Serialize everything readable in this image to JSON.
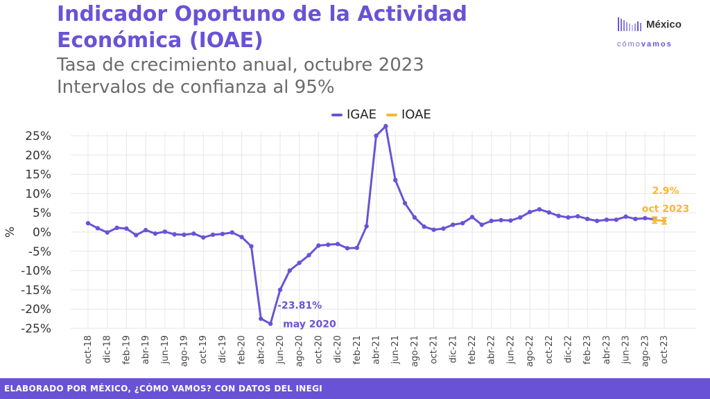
{
  "header": {
    "title": "Indicador Oportuno de la Actividad Económica (IOAE)",
    "subtitle_line1": "Tasa de crecimiento anual, octubre 2023",
    "subtitle_line2": "Intervalos de confianza al 95%"
  },
  "logo": {
    "word1": "México",
    "word2a": "cómo",
    "word2b": "vamos"
  },
  "footer": {
    "text": "ELABORADO POR MÉXICO, ¿CÓMO VAMOS? CON DATOS DEL INEGI"
  },
  "colors": {
    "igae": "#6a52d6",
    "ioae": "#f7b731",
    "grid": "#e6e6e6"
  },
  "chart_data": {
    "type": "line",
    "ylabel": "%",
    "ylim": [
      -25,
      25
    ],
    "yticks": [
      "25%",
      "20%",
      "15%",
      "10%",
      "5%",
      "0%",
      "-5%",
      "-10%",
      "-15%",
      "-20%",
      "-25%"
    ],
    "ytick_values": [
      25,
      20,
      15,
      10,
      5,
      0,
      -5,
      -10,
      -15,
      -20,
      -25
    ],
    "grid": true,
    "legend_position": "top-center",
    "x": [
      "oct-18",
      "nov-18",
      "dic-18",
      "ene-19",
      "feb-19",
      "mar-19",
      "abr-19",
      "may-19",
      "jun-19",
      "jul-19",
      "ago-19",
      "sep-19",
      "oct-19",
      "nov-19",
      "dic-19",
      "ene-20",
      "feb-20",
      "mar-20",
      "abr-20",
      "may-20",
      "jun-20",
      "jul-20",
      "ago-20",
      "sep-20",
      "oct-20",
      "nov-20",
      "dic-20",
      "ene-21",
      "feb-21",
      "mar-21",
      "abr-21",
      "may-21",
      "jun-21",
      "jul-21",
      "ago-21",
      "sep-21",
      "oct-21",
      "nov-21",
      "dic-21",
      "ene-22",
      "feb-22",
      "mar-22",
      "abr-22",
      "may-22",
      "jun-22",
      "jul-22",
      "ago-22",
      "sep-22",
      "oct-22",
      "nov-22",
      "dic-22",
      "ene-23",
      "feb-23",
      "mar-23",
      "abr-23",
      "may-23",
      "jun-23",
      "jul-23",
      "ago-23",
      "sep-23",
      "oct-23"
    ],
    "xtick_labels": [
      "oct-18",
      "dic-18",
      "feb-19",
      "abr-19",
      "jun-19",
      "ago-19",
      "oct-19",
      "dic-19",
      "feb-20",
      "abr-20",
      "jun-20",
      "ago-20",
      "oct-20",
      "dic-20",
      "feb-21",
      "abr-21",
      "jun-21",
      "ago-21",
      "oct-21",
      "dic-21",
      "feb-22",
      "abr-22",
      "jun-22",
      "ago-22",
      "oct-22",
      "dic-22",
      "feb-23",
      "abr-23",
      "jun-23",
      "ago-23",
      "oct-23"
    ],
    "series": [
      {
        "name": "IGAE",
        "values": [
          2.3,
          1.0,
          -0.1,
          1.1,
          0.9,
          -0.8,
          0.5,
          -0.4,
          0.1,
          -0.6,
          -0.7,
          -0.4,
          -1.4,
          -0.7,
          -0.5,
          -0.1,
          -1.3,
          -3.7,
          -22.5,
          -23.81,
          -15.0,
          -10.0,
          -8.0,
          -6.0,
          -3.5,
          -3.3,
          -3.1,
          -4.2,
          -4.1,
          1.5,
          25.0,
          27.5,
          13.5,
          7.5,
          3.8,
          1.4,
          0.6,
          0.9,
          1.9,
          2.3,
          3.9,
          1.9,
          2.9,
          3.1,
          3.0,
          3.8,
          5.2,
          5.9,
          5.1,
          4.2,
          3.8,
          4.1,
          3.4,
          2.9,
          3.2,
          3.2,
          4.0,
          3.4,
          3.6,
          3.3,
          null
        ]
      },
      {
        "name": "IOAE",
        "values": [
          null,
          null,
          null,
          null,
          null,
          null,
          null,
          null,
          null,
          null,
          null,
          null,
          null,
          null,
          null,
          null,
          null,
          null,
          null,
          null,
          null,
          null,
          null,
          null,
          null,
          null,
          null,
          null,
          null,
          null,
          null,
          null,
          null,
          null,
          null,
          null,
          null,
          null,
          null,
          null,
          null,
          null,
          null,
          null,
          null,
          null,
          null,
          null,
          null,
          null,
          null,
          null,
          null,
          null,
          null,
          null,
          null,
          null,
          null,
          3.1,
          2.9
        ],
        "ci_low": [
          null,
          null,
          null,
          null,
          null,
          null,
          null,
          null,
          null,
          null,
          null,
          null,
          null,
          null,
          null,
          null,
          null,
          null,
          null,
          null,
          null,
          null,
          null,
          null,
          null,
          null,
          null,
          null,
          null,
          null,
          null,
          null,
          null,
          null,
          null,
          null,
          null,
          null,
          null,
          null,
          null,
          null,
          null,
          null,
          null,
          null,
          null,
          null,
          null,
          null,
          null,
          null,
          null,
          null,
          null,
          null,
          null,
          null,
          null,
          2.3,
          2.1
        ],
        "ci_high": [
          null,
          null,
          null,
          null,
          null,
          null,
          null,
          null,
          null,
          null,
          null,
          null,
          null,
          null,
          null,
          null,
          null,
          null,
          null,
          null,
          null,
          null,
          null,
          null,
          null,
          null,
          null,
          null,
          null,
          null,
          null,
          null,
          null,
          null,
          null,
          null,
          null,
          null,
          null,
          null,
          null,
          null,
          null,
          null,
          null,
          null,
          null,
          null,
          null,
          null,
          null,
          null,
          null,
          null,
          null,
          null,
          null,
          null,
          null,
          3.9,
          3.7
        ]
      }
    ],
    "annotations": [
      {
        "x": "may-20",
        "lines": [
          "-23.81%",
          "may 2020"
        ],
        "series": "IGAE"
      },
      {
        "x": "oct-23",
        "lines": [
          "2.9%",
          "oct 2023"
        ],
        "series": "IOAE"
      }
    ]
  }
}
